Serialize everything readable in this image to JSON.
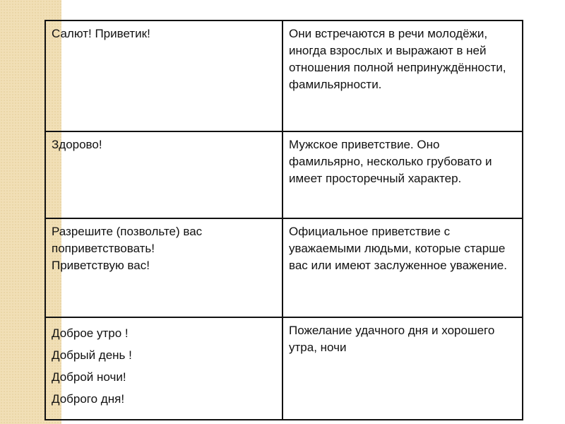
{
  "rows": [
    {
      "greeting": [
        "Салют! Приветик!"
      ],
      "description": "Они встречаются в речи молодёжи, иногда взрослых и выражают в ней отношения полной непринуждённости, фамильярности."
    },
    {
      "greeting": [
        "Здорово!"
      ],
      "description": "Мужское приветствие. Оно фамильярно, несколько грубовато и имеет просторечный характер."
    },
    {
      "greeting": [
        "Разрешите (позвольте) вас поприветствовать!",
        "Приветствую вас!"
      ],
      "description": "Официальное приветствие с уважаемыми людьми, которые старше вас или имеют заслуженное уважение."
    },
    {
      "greeting": [
        "Доброе утро !",
        "Добрый день !",
        "Доброй ночи!",
        "Доброго дня!"
      ],
      "description": "Пожелание удачного дня и хорошего утра, ночи"
    }
  ]
}
